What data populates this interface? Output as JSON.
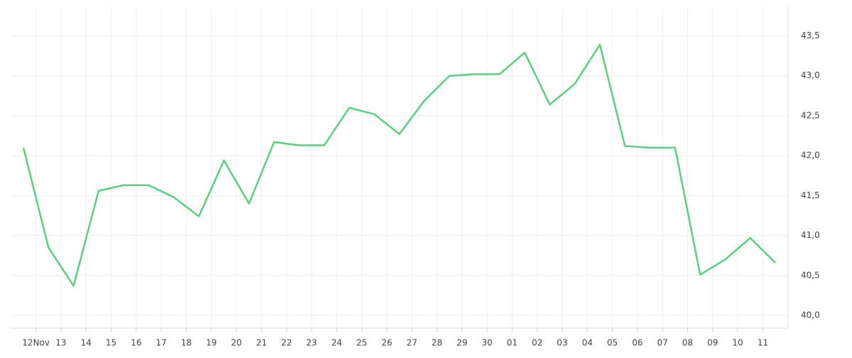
{
  "chart_data": {
    "type": "line",
    "categories": [
      null,
      "12Nov",
      "13",
      "14",
      "15",
      "16",
      "17",
      "18",
      "19",
      "20",
      "21",
      "22",
      "23",
      "24",
      "25",
      "26",
      "27",
      "28",
      "29",
      "30",
      "01",
      "02",
      "03",
      "04",
      "05",
      "06",
      "07",
      "08",
      "09",
      "10",
      "11"
    ],
    "series": [
      {
        "color": "#5ad07f",
        "values": [
          42.1,
          40.85,
          40.37,
          41.56,
          41.63,
          41.63,
          41.48,
          41.24,
          41.94,
          41.4,
          42.17,
          42.13,
          42.13,
          42.6,
          42.52,
          42.27,
          42.69,
          43.0,
          43.02,
          43.02,
          43.29,
          42.64,
          42.9,
          43.39,
          42.12,
          42.1,
          42.1,
          40.51,
          40.7,
          40.97,
          40.66
        ]
      }
    ],
    "ylim": [
      39.84,
      43.86
    ],
    "yticks": [
      {
        "value": 40.0,
        "label": "40,0"
      },
      {
        "value": 40.5,
        "label": "40,5"
      },
      {
        "value": 41.0,
        "label": "41,0"
      },
      {
        "value": 41.5,
        "label": "41,5"
      },
      {
        "value": 42.0,
        "label": "42,0"
      },
      {
        "value": 42.5,
        "label": "42,5"
      },
      {
        "value": 43.0,
        "label": "43,0"
      },
      {
        "value": 43.5,
        "label": "43,5"
      }
    ],
    "grid": true,
    "y_axis_side": "right"
  }
}
